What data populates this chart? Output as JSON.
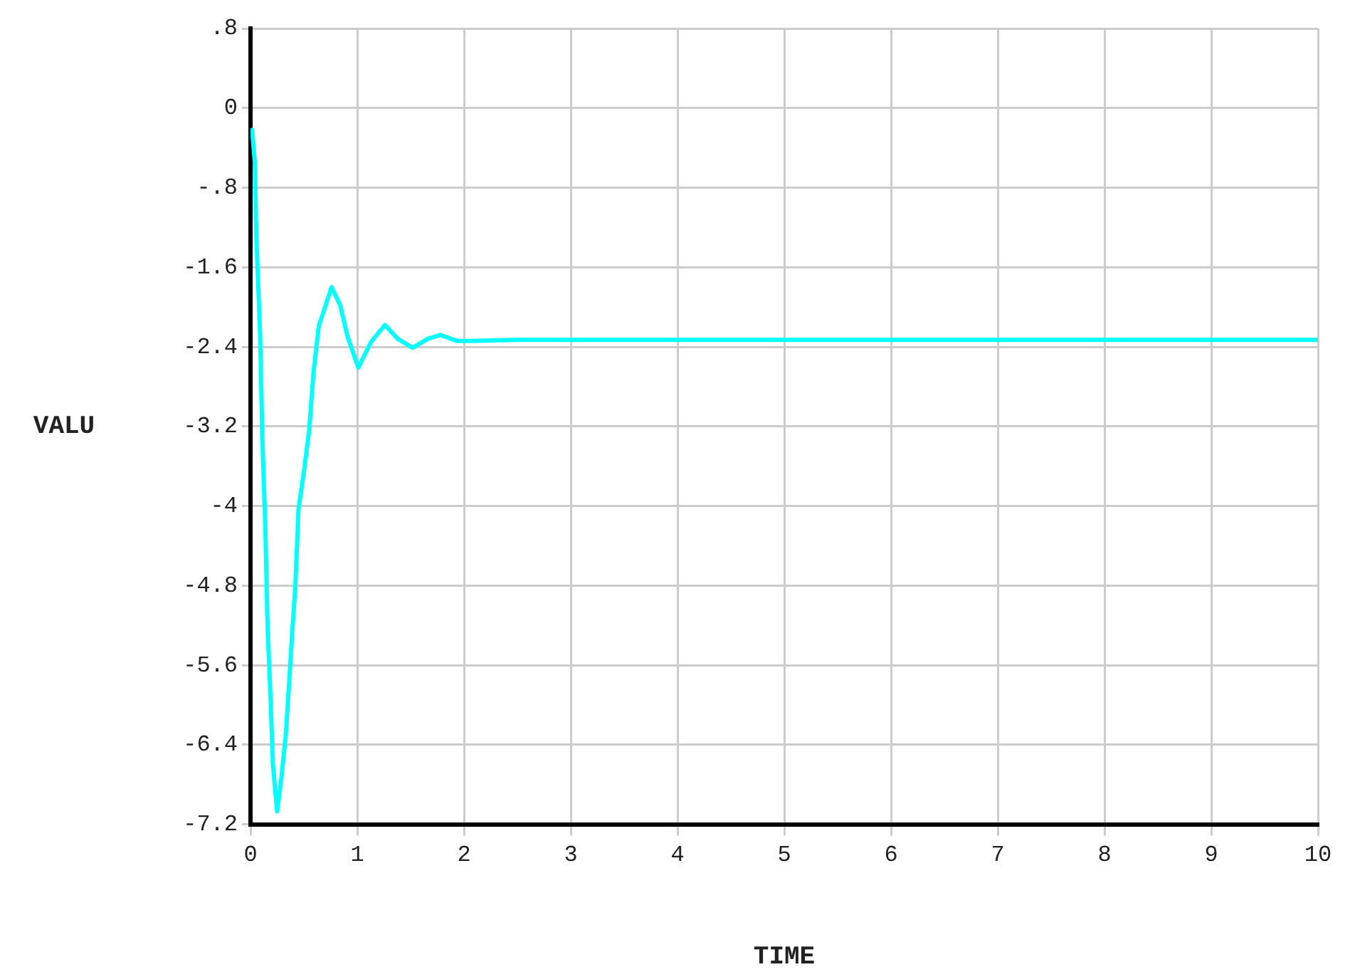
{
  "chart_data": {
    "type": "line",
    "xlabel": "TIME",
    "ylabel": "VALU",
    "xlim": [
      0,
      10
    ],
    "xticks": [
      0,
      1,
      2,
      3,
      4,
      5,
      6,
      7,
      8,
      9,
      10
    ],
    "ylim": [
      -7.2,
      0.8
    ],
    "yticks": [
      {
        "value": 0.8,
        "label": ".8"
      },
      0,
      {
        "value": -0.8,
        "label": "-.8"
      },
      -1.6,
      -2.4,
      -3.2,
      -4,
      -4.8,
      -5.6,
      -6.4,
      -7.2
    ],
    "grid": true,
    "legend": false,
    "marker": "none",
    "line_style": "solid",
    "series": [
      {
        "color": "#00ffff",
        "x": [
          0.015,
          0.04,
          0.055,
          0.09,
          0.11,
          0.14,
          0.16,
          0.19,
          0.21,
          0.25,
          0.29,
          0.33,
          0.36,
          0.39,
          0.42,
          0.45,
          0.5,
          0.55,
          0.59,
          0.64,
          0.69,
          0.76,
          0.84,
          0.91,
          1.01,
          1.13,
          1.26,
          1.38,
          1.52,
          1.66,
          1.78,
          1.93,
          2.08,
          2.5,
          3,
          4,
          5,
          6,
          7,
          8,
          9,
          10
        ],
        "values": [
          -0.22,
          -0.54,
          -1.3,
          -2.27,
          -3.27,
          -4.26,
          -5.21,
          -5.99,
          -6.6,
          -7.07,
          -6.73,
          -6.31,
          -5.81,
          -5.29,
          -4.81,
          -4.03,
          -3.66,
          -3.24,
          -2.66,
          -2.19,
          -2.03,
          -1.8,
          -1.98,
          -2.3,
          -2.61,
          -2.35,
          -2.18,
          -2.32,
          -2.41,
          -2.32,
          -2.28,
          -2.34,
          -2.34,
          -2.33,
          -2.33,
          -2.33,
          -2.33,
          -2.33,
          -2.33,
          -2.33,
          -2.33,
          -2.33
        ]
      }
    ]
  }
}
